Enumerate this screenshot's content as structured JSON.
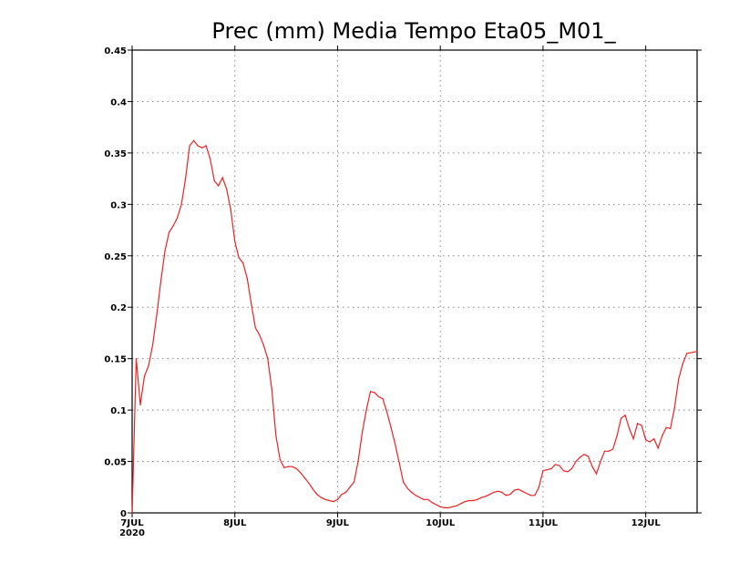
{
  "chart_data": {
    "type": "line",
    "title": "Prec (mm) Media Tempo Eta05_M01_",
    "xlabel": "",
    "ylabel": "",
    "ylim": [
      0,
      0.45
    ],
    "yticks": [
      "0",
      "0.05",
      "0.1",
      "0.15",
      "0.2",
      "0.25",
      "0.3",
      "0.35",
      "0.4",
      "0.45"
    ],
    "xticks": [
      {
        "day": 0,
        "label": "7JUL",
        "sublabel": "2020"
      },
      {
        "day": 1,
        "label": "8JUL",
        "sublabel": ""
      },
      {
        "day": 2,
        "label": "9JUL",
        "sublabel": ""
      },
      {
        "day": 3,
        "label": "10JUL",
        "sublabel": ""
      },
      {
        "day": 4,
        "label": "11JUL",
        "sublabel": ""
      },
      {
        "day": 5,
        "label": "12JUL",
        "sublabel": ""
      }
    ],
    "xlim": [
      0,
      5.5
    ],
    "grid": true,
    "series": [
      {
        "color": "#ee2222",
        "points": [
          [
            0.0,
            0.0
          ],
          [
            0.04,
            0.15
          ],
          [
            0.08,
            0.105
          ],
          [
            0.12,
            0.133
          ],
          [
            0.16,
            0.143
          ],
          [
            0.2,
            0.163
          ],
          [
            0.24,
            0.193
          ],
          [
            0.28,
            0.226
          ],
          [
            0.32,
            0.255
          ],
          [
            0.36,
            0.273
          ],
          [
            0.4,
            0.279
          ],
          [
            0.44,
            0.287
          ],
          [
            0.48,
            0.3
          ],
          [
            0.52,
            0.325
          ],
          [
            0.56,
            0.357
          ],
          [
            0.6,
            0.362
          ],
          [
            0.64,
            0.357
          ],
          [
            0.68,
            0.355
          ],
          [
            0.72,
            0.357
          ],
          [
            0.76,
            0.344
          ],
          [
            0.8,
            0.323
          ],
          [
            0.84,
            0.318
          ],
          [
            0.88,
            0.326
          ],
          [
            0.92,
            0.315
          ],
          [
            0.96,
            0.295
          ],
          [
            1.0,
            0.264
          ],
          [
            1.04,
            0.248
          ],
          [
            1.08,
            0.243
          ],
          [
            1.12,
            0.228
          ],
          [
            1.16,
            0.203
          ],
          [
            1.2,
            0.18
          ],
          [
            1.24,
            0.173
          ],
          [
            1.28,
            0.163
          ],
          [
            1.32,
            0.15
          ],
          [
            1.36,
            0.12
          ],
          [
            1.4,
            0.075
          ],
          [
            1.44,
            0.052
          ],
          [
            1.48,
            0.044
          ],
          [
            1.52,
            0.045
          ],
          [
            1.56,
            0.045
          ],
          [
            1.6,
            0.043
          ],
          [
            1.64,
            0.039
          ],
          [
            1.68,
            0.034
          ],
          [
            1.72,
            0.029
          ],
          [
            1.76,
            0.023
          ],
          [
            1.8,
            0.018
          ],
          [
            1.84,
            0.015
          ],
          [
            1.88,
            0.013
          ],
          [
            1.92,
            0.012
          ],
          [
            1.96,
            0.011
          ],
          [
            2.0,
            0.013
          ],
          [
            2.04,
            0.018
          ],
          [
            2.08,
            0.02
          ],
          [
            2.12,
            0.025
          ],
          [
            2.16,
            0.03
          ],
          [
            2.2,
            0.05
          ],
          [
            2.24,
            0.078
          ],
          [
            2.28,
            0.1
          ],
          [
            2.32,
            0.118
          ],
          [
            2.36,
            0.117
          ],
          [
            2.4,
            0.113
          ],
          [
            2.44,
            0.111
          ],
          [
            2.48,
            0.098
          ],
          [
            2.52,
            0.083
          ],
          [
            2.56,
            0.067
          ],
          [
            2.6,
            0.049
          ],
          [
            2.64,
            0.03
          ],
          [
            2.68,
            0.024
          ],
          [
            2.72,
            0.02
          ],
          [
            2.76,
            0.017
          ],
          [
            2.8,
            0.015
          ],
          [
            2.84,
            0.013
          ],
          [
            2.88,
            0.013
          ],
          [
            2.92,
            0.01
          ],
          [
            2.96,
            0.008
          ],
          [
            3.0,
            0.006
          ],
          [
            3.04,
            0.005
          ],
          [
            3.08,
            0.005
          ],
          [
            3.12,
            0.006
          ],
          [
            3.16,
            0.007
          ],
          [
            3.2,
            0.009
          ],
          [
            3.24,
            0.011
          ],
          [
            3.28,
            0.012
          ],
          [
            3.32,
            0.012
          ],
          [
            3.36,
            0.013
          ],
          [
            3.4,
            0.015
          ],
          [
            3.44,
            0.016
          ],
          [
            3.48,
            0.018
          ],
          [
            3.52,
            0.02
          ],
          [
            3.56,
            0.021
          ],
          [
            3.6,
            0.02
          ],
          [
            3.64,
            0.017
          ],
          [
            3.68,
            0.018
          ],
          [
            3.72,
            0.022
          ],
          [
            3.76,
            0.023
          ],
          [
            3.8,
            0.021
          ],
          [
            3.84,
            0.019
          ],
          [
            3.88,
            0.017
          ],
          [
            3.92,
            0.017
          ],
          [
            3.96,
            0.025
          ],
          [
            4.0,
            0.041
          ],
          [
            4.04,
            0.042
          ],
          [
            4.08,
            0.043
          ],
          [
            4.12,
            0.047
          ],
          [
            4.16,
            0.046
          ],
          [
            4.2,
            0.041
          ],
          [
            4.24,
            0.04
          ],
          [
            4.28,
            0.043
          ],
          [
            4.32,
            0.05
          ],
          [
            4.36,
            0.054
          ],
          [
            4.4,
            0.057
          ],
          [
            4.44,
            0.055
          ],
          [
            4.48,
            0.045
          ],
          [
            4.52,
            0.038
          ],
          [
            4.56,
            0.05
          ],
          [
            4.6,
            0.06
          ],
          [
            4.64,
            0.06
          ],
          [
            4.68,
            0.062
          ],
          [
            4.72,
            0.075
          ],
          [
            4.76,
            0.092
          ],
          [
            4.8,
            0.095
          ],
          [
            4.84,
            0.082
          ],
          [
            4.88,
            0.072
          ],
          [
            4.92,
            0.087
          ],
          [
            4.96,
            0.085
          ],
          [
            5.0,
            0.071
          ],
          [
            5.04,
            0.069
          ],
          [
            5.08,
            0.072
          ],
          [
            5.12,
            0.063
          ],
          [
            5.16,
            0.075
          ],
          [
            5.2,
            0.083
          ],
          [
            5.24,
            0.082
          ],
          [
            5.28,
            0.102
          ],
          [
            5.32,
            0.13
          ],
          [
            5.36,
            0.145
          ],
          [
            5.4,
            0.155
          ],
          [
            5.5,
            0.157
          ]
        ]
      }
    ]
  }
}
